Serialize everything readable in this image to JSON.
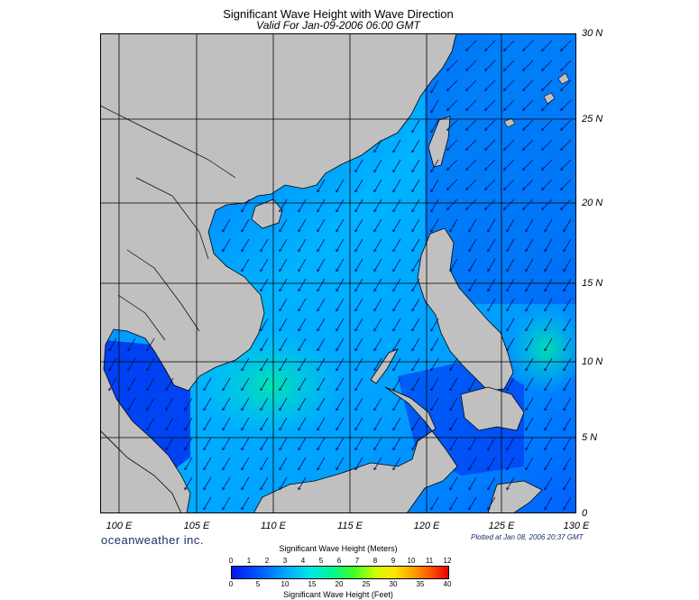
{
  "title": "Significant Wave Height with Wave Direction",
  "subtitle": "Valid For Jan-09-2006 06:00 GMT",
  "lat_labels": [
    "30 N",
    "25 N",
    "20 N",
    "15 N",
    "10 N",
    "5 N",
    "0"
  ],
  "lon_labels": [
    "100 E",
    "105 E",
    "110 E",
    "115 E",
    "120 E",
    "125 E",
    "130 E"
  ],
  "brand": "oceanweather inc.",
  "plotted_at": "Plotted at Jan 08, 2006 20:37 GMT",
  "scale": {
    "meters_title": "Significant Wave Height (Meters)",
    "meters_ticks": [
      "0",
      "1",
      "2",
      "3",
      "4",
      "5",
      "6",
      "7",
      "8",
      "9",
      "10",
      "11",
      "12"
    ],
    "feet_title": "Significant Wave Height (Feet)",
    "feet_ticks": [
      "0",
      "5",
      "10",
      "15",
      "20",
      "25",
      "30",
      "35",
      "40"
    ]
  },
  "colors": {
    "land": "#c0c0c0",
    "ocean_low": "#0018f0",
    "ocean_mid": "#00b4ff",
    "ocean_high": "#00f09a"
  }
}
